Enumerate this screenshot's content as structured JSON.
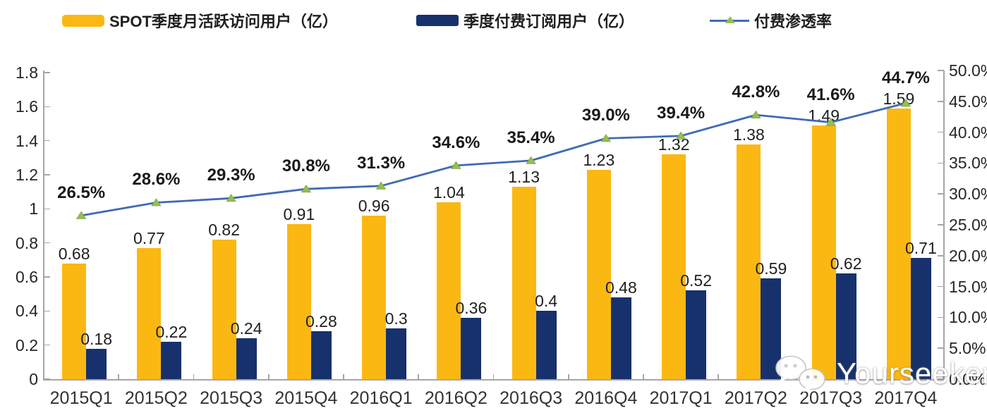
{
  "legend": [
    {
      "label": "SPOT季度月活跃访问用户（亿）",
      "color": "#FBB812",
      "type": "bar"
    },
    {
      "label": "季度付费订阅用户（亿）",
      "color": "#17316C",
      "type": "bar"
    },
    {
      "label": "付费渗透率",
      "color": "#3F6BB5",
      "marker_color": "#95BE53",
      "type": "line"
    }
  ],
  "watermark": {
    "icon": "wechat-icon",
    "text": "Yourseeker"
  },
  "colors": {
    "mau_bar": "#FBB812",
    "subs_bar": "#17316C",
    "line": "#3F6BB5",
    "marker": "#95BE53",
    "axis": "#A6A6A6",
    "text": "#1F1F1F"
  },
  "chart_data": {
    "type": "bar",
    "subtype": "grouped-bars-with-line-combo",
    "title": "",
    "categories": [
      "2015Q1",
      "2015Q2",
      "2015Q3",
      "2015Q4",
      "2016Q1",
      "2016Q2",
      "2016Q3",
      "2016Q4",
      "2017Q1",
      "2017Q2",
      "2017Q3",
      "2017Q4"
    ],
    "series": [
      {
        "name": "SPOT季度月活跃访问用户（亿）",
        "type": "bar",
        "axis": "left",
        "color": "#FBB812",
        "values": [
          0.68,
          0.77,
          0.82,
          0.91,
          0.96,
          1.04,
          1.13,
          1.23,
          1.32,
          1.38,
          1.49,
          1.59
        ],
        "labels": [
          "0.68",
          "0.77",
          "0.82",
          "0.91",
          "0.96",
          "1.04",
          "1.13",
          "1.23",
          "1.32",
          "1.38",
          "1.49",
          "1.59"
        ]
      },
      {
        "name": "季度付费订阅用户（亿）",
        "type": "bar",
        "axis": "left",
        "color": "#17316C",
        "values": [
          0.18,
          0.22,
          0.24,
          0.28,
          0.3,
          0.36,
          0.4,
          0.48,
          0.52,
          0.59,
          0.62,
          0.71
        ],
        "labels": [
          "0.18",
          "0.22",
          "0.24",
          "0.28",
          "0.3",
          "0.36",
          "0.4",
          "0.48",
          "0.52",
          "0.59",
          "0.62",
          "0.71"
        ]
      },
      {
        "name": "付费渗透率",
        "type": "line",
        "axis": "right",
        "color": "#3F6BB5",
        "marker": "triangle",
        "marker_color": "#95BE53",
        "values": [
          26.5,
          28.6,
          29.3,
          30.8,
          31.3,
          34.6,
          35.4,
          39.0,
          39.4,
          42.8,
          41.6,
          44.7
        ],
        "labels": [
          "26.5%",
          "28.6%",
          "29.3%",
          "30.8%",
          "31.3%",
          "34.6%",
          "35.4%",
          "39.0%",
          "39.4%",
          "42.8%",
          "41.6%",
          "44.7%"
        ]
      }
    ],
    "left_axis": {
      "min": 0,
      "max": 1.8,
      "ticks": [
        "0",
        "0.2",
        "0.4",
        "0.6",
        "0.8",
        "1",
        "1.2",
        "1.4",
        "1.6",
        "1.8"
      ]
    },
    "right_axis": {
      "min": 0,
      "max": 50,
      "ticks": [
        "0.0%",
        "5.0%",
        "10.0%",
        "15.0%",
        "20.0%",
        "25.0%",
        "30.0%",
        "35.0%",
        "40.0%",
        "45.0%",
        "50.0%"
      ]
    },
    "grid": false,
    "legend_position": "top"
  }
}
